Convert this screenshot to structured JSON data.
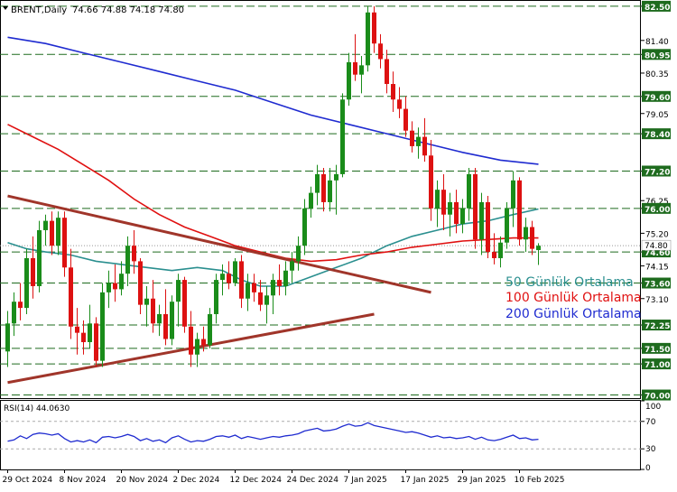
{
  "header": {
    "symbol": "BRENT,Daily",
    "ohlc": "74.66 74.88 74.18 74.80"
  },
  "rsi_header": {
    "label": "RSI(14) 44.0630"
  },
  "colors": {
    "bull": "#1a8c1a",
    "bear": "#dd1111",
    "ma50": "#2a8f8f",
    "ma100": "#e01010",
    "ma200": "#1f2bd0",
    "trendline": "#a0352a",
    "hline": "#1e6b1e",
    "rsi": "#1f2bd0"
  },
  "price_axis": {
    "ticks": [
      "82.50",
      "81.40",
      "80.95",
      "80.35",
      "79.60",
      "79.05",
      "78.40",
      "77.20",
      "76.25",
      "76.00",
      "75.20",
      "74.60",
      "74.15",
      "73.60",
      "73.10",
      "72.25",
      "71.50",
      "71.00",
      "70.00"
    ],
    "boxed": [
      "82.50",
      "80.95",
      "79.60",
      "78.40",
      "77.20",
      "76.00",
      "74.60",
      "73.60",
      "72.25",
      "71.50",
      "71.00",
      "70.00"
    ],
    "current_price": "74.80"
  },
  "x_labels": [
    "29 Oct 2024",
    "8 Nov 2024",
    "20 Nov 2024",
    "2 Dec 2024",
    "12 Dec 2024",
    "24 Dec 2024",
    "7 Jan 2025",
    "17 Jan 2025",
    "29 Jan 2025",
    "10 Feb 2025"
  ],
  "rsi_axis": {
    "ticks": [
      "100",
      "70",
      "30",
      "0"
    ]
  },
  "legend": [
    {
      "label": "50 Günlük Ortalama",
      "color": "#2a8f8f"
    },
    {
      "label": "100 Günlük Ortalama",
      "color": "#e01010"
    },
    {
      "label": "200 Günlük Ortalama",
      "color": "#1f2bd0"
    }
  ],
  "chart_data": {
    "type": "candlestick",
    "title": "BRENT,Daily",
    "ylim": [
      69.9,
      82.7
    ],
    "horizontal_levels": [
      82.5,
      80.95,
      79.6,
      78.4,
      77.2,
      76.0,
      74.6,
      73.6,
      72.25,
      71.5,
      71.0,
      70.0
    ],
    "candles": [
      {
        "o": 71.4,
        "h": 72.7,
        "l": 70.9,
        "c": 72.3
      },
      {
        "o": 72.3,
        "h": 73.3,
        "l": 71.9,
        "c": 73.0
      },
      {
        "o": 73.0,
        "h": 73.6,
        "l": 72.4,
        "c": 72.8
      },
      {
        "o": 72.8,
        "h": 74.7,
        "l": 72.6,
        "c": 74.4
      },
      {
        "o": 74.4,
        "h": 75.1,
        "l": 73.1,
        "c": 73.5
      },
      {
        "o": 73.5,
        "h": 75.6,
        "l": 73.3,
        "c": 75.3
      },
      {
        "o": 75.3,
        "h": 75.8,
        "l": 74.8,
        "c": 75.6
      },
      {
        "o": 75.6,
        "h": 75.9,
        "l": 74.5,
        "c": 74.8
      },
      {
        "o": 74.8,
        "h": 75.9,
        "l": 74.5,
        "c": 75.7
      },
      {
        "o": 75.7,
        "h": 75.9,
        "l": 73.8,
        "c": 74.1
      },
      {
        "o": 74.1,
        "h": 74.7,
        "l": 71.8,
        "c": 72.2
      },
      {
        "o": 72.2,
        "h": 72.8,
        "l": 71.3,
        "c": 72.0
      },
      {
        "o": 72.0,
        "h": 72.4,
        "l": 71.3,
        "c": 71.7
      },
      {
        "o": 71.7,
        "h": 72.9,
        "l": 71.5,
        "c": 72.3
      },
      {
        "o": 72.3,
        "h": 72.5,
        "l": 70.9,
        "c": 71.1
      },
      {
        "o": 71.1,
        "h": 73.6,
        "l": 70.9,
        "c": 73.3
      },
      {
        "o": 73.3,
        "h": 74.0,
        "l": 72.8,
        "c": 73.6
      },
      {
        "o": 73.6,
        "h": 74.2,
        "l": 73.0,
        "c": 73.4
      },
      {
        "o": 73.4,
        "h": 74.3,
        "l": 73.2,
        "c": 73.9
      },
      {
        "o": 73.9,
        "h": 75.1,
        "l": 73.5,
        "c": 74.8
      },
      {
        "o": 74.8,
        "h": 75.3,
        "l": 73.9,
        "c": 74.3
      },
      {
        "o": 74.3,
        "h": 74.4,
        "l": 72.6,
        "c": 72.9
      },
      {
        "o": 72.9,
        "h": 73.5,
        "l": 72.2,
        "c": 73.1
      },
      {
        "o": 73.1,
        "h": 73.7,
        "l": 72.0,
        "c": 72.3
      },
      {
        "o": 72.3,
        "h": 72.9,
        "l": 71.9,
        "c": 72.6
      },
      {
        "o": 72.6,
        "h": 73.4,
        "l": 71.6,
        "c": 71.8
      },
      {
        "o": 71.8,
        "h": 73.2,
        "l": 71.6,
        "c": 73.0
      },
      {
        "o": 73.0,
        "h": 73.9,
        "l": 72.2,
        "c": 73.7
      },
      {
        "o": 73.7,
        "h": 73.8,
        "l": 72.0,
        "c": 72.2
      },
      {
        "o": 72.2,
        "h": 72.7,
        "l": 70.9,
        "c": 71.3
      },
      {
        "o": 71.3,
        "h": 72.0,
        "l": 70.9,
        "c": 71.8
      },
      {
        "o": 71.8,
        "h": 72.2,
        "l": 71.4,
        "c": 71.6
      },
      {
        "o": 71.6,
        "h": 72.8,
        "l": 71.5,
        "c": 72.6
      },
      {
        "o": 72.6,
        "h": 73.9,
        "l": 72.3,
        "c": 73.7
      },
      {
        "o": 73.7,
        "h": 74.2,
        "l": 73.2,
        "c": 73.9
      },
      {
        "o": 73.9,
        "h": 74.3,
        "l": 73.4,
        "c": 73.6
      },
      {
        "o": 73.6,
        "h": 74.4,
        "l": 73.5,
        "c": 74.3
      },
      {
        "o": 74.3,
        "h": 74.5,
        "l": 72.8,
        "c": 73.1
      },
      {
        "o": 73.1,
        "h": 73.9,
        "l": 72.7,
        "c": 73.6
      },
      {
        "o": 73.6,
        "h": 73.9,
        "l": 73.0,
        "c": 73.3
      },
      {
        "o": 73.3,
        "h": 73.7,
        "l": 72.7,
        "c": 72.9
      },
      {
        "o": 72.9,
        "h": 73.5,
        "l": 72.3,
        "c": 73.2
      },
      {
        "o": 73.2,
        "h": 73.9,
        "l": 72.6,
        "c": 73.7
      },
      {
        "o": 73.7,
        "h": 74.2,
        "l": 73.2,
        "c": 73.5
      },
      {
        "o": 73.5,
        "h": 74.3,
        "l": 73.2,
        "c": 74.0
      },
      {
        "o": 74.0,
        "h": 74.6,
        "l": 73.6,
        "c": 74.3
      },
      {
        "o": 74.3,
        "h": 75.1,
        "l": 74.0,
        "c": 74.8
      },
      {
        "o": 74.8,
        "h": 76.3,
        "l": 74.5,
        "c": 76.0
      },
      {
        "o": 76.0,
        "h": 76.7,
        "l": 75.7,
        "c": 76.5
      },
      {
        "o": 76.5,
        "h": 77.4,
        "l": 76.1,
        "c": 77.1
      },
      {
        "o": 77.1,
        "h": 77.3,
        "l": 75.9,
        "c": 76.2
      },
      {
        "o": 76.2,
        "h": 77.3,
        "l": 75.9,
        "c": 76.9
      },
      {
        "o": 76.9,
        "h": 77.4,
        "l": 75.8,
        "c": 77.1
      },
      {
        "o": 77.1,
        "h": 79.7,
        "l": 77.0,
        "c": 79.5
      },
      {
        "o": 79.5,
        "h": 81.0,
        "l": 79.3,
        "c": 80.7
      },
      {
        "o": 80.7,
        "h": 81.6,
        "l": 80.1,
        "c": 80.3
      },
      {
        "o": 80.3,
        "h": 80.9,
        "l": 79.7,
        "c": 80.6
      },
      {
        "o": 80.6,
        "h": 82.5,
        "l": 80.4,
        "c": 82.3
      },
      {
        "o": 82.3,
        "h": 82.5,
        "l": 81.0,
        "c": 81.3
      },
      {
        "o": 81.3,
        "h": 81.6,
        "l": 80.5,
        "c": 80.8
      },
      {
        "o": 80.8,
        "h": 81.1,
        "l": 79.7,
        "c": 80.0
      },
      {
        "o": 80.0,
        "h": 80.4,
        "l": 79.1,
        "c": 79.5
      },
      {
        "o": 79.5,
        "h": 79.9,
        "l": 78.9,
        "c": 79.2
      },
      {
        "o": 79.2,
        "h": 79.6,
        "l": 78.3,
        "c": 78.5
      },
      {
        "o": 78.5,
        "h": 78.8,
        "l": 77.8,
        "c": 78.0
      },
      {
        "o": 78.0,
        "h": 78.6,
        "l": 77.6,
        "c": 78.3
      },
      {
        "o": 78.3,
        "h": 78.9,
        "l": 77.5,
        "c": 77.7
      },
      {
        "o": 77.7,
        "h": 78.2,
        "l": 75.6,
        "c": 76.0
      },
      {
        "o": 76.0,
        "h": 76.9,
        "l": 75.4,
        "c": 76.6
      },
      {
        "o": 76.6,
        "h": 77.1,
        "l": 75.3,
        "c": 75.8
      },
      {
        "o": 75.8,
        "h": 76.5,
        "l": 75.1,
        "c": 76.2
      },
      {
        "o": 76.2,
        "h": 76.6,
        "l": 75.2,
        "c": 75.5
      },
      {
        "o": 75.5,
        "h": 76.3,
        "l": 75.2,
        "c": 76.0
      },
      {
        "o": 76.0,
        "h": 77.3,
        "l": 75.6,
        "c": 77.1
      },
      {
        "o": 77.1,
        "h": 77.3,
        "l": 74.7,
        "c": 75.0
      },
      {
        "o": 75.0,
        "h": 76.5,
        "l": 74.5,
        "c": 76.2
      },
      {
        "o": 76.2,
        "h": 76.4,
        "l": 74.4,
        "c": 74.6
      },
      {
        "o": 74.6,
        "h": 75.2,
        "l": 74.2,
        "c": 74.4
      },
      {
        "o": 74.4,
        "h": 75.1,
        "l": 74.1,
        "c": 74.9
      },
      {
        "o": 74.9,
        "h": 76.2,
        "l": 74.7,
        "c": 76.0
      },
      {
        "o": 76.0,
        "h": 77.2,
        "l": 75.4,
        "c": 76.9
      },
      {
        "o": 76.9,
        "h": 77.0,
        "l": 74.8,
        "c": 75.0
      },
      {
        "o": 75.0,
        "h": 75.7,
        "l": 74.6,
        "c": 75.4
      },
      {
        "o": 75.4,
        "h": 75.6,
        "l": 74.5,
        "c": 74.7
      },
      {
        "o": 74.66,
        "h": 74.88,
        "l": 74.18,
        "c": 74.8
      }
    ],
    "moving_averages": [
      {
        "name": "50 Günlük Ortalama",
        "points": [
          [
            0,
            74.9
          ],
          [
            3,
            74.7
          ],
          [
            6,
            74.6
          ],
          [
            10,
            74.5
          ],
          [
            14,
            74.3
          ],
          [
            18,
            74.2
          ],
          [
            22,
            74.1
          ],
          [
            26,
            74.0
          ],
          [
            30,
            74.1
          ],
          [
            34,
            74.0
          ],
          [
            37,
            73.7
          ],
          [
            40,
            73.5
          ],
          [
            44,
            73.5
          ],
          [
            48,
            73.8
          ],
          [
            52,
            74.1
          ],
          [
            56,
            74.4
          ],
          [
            60,
            74.8
          ],
          [
            64,
            75.1
          ],
          [
            68,
            75.3
          ],
          [
            72,
            75.5
          ],
          [
            76,
            75.6
          ],
          [
            80,
            75.8
          ],
          [
            84,
            75.98
          ]
        ]
      },
      {
        "name": "100 Günlük Ortalama",
        "points": [
          [
            0,
            78.7
          ],
          [
            4,
            78.3
          ],
          [
            8,
            77.9
          ],
          [
            12,
            77.4
          ],
          [
            16,
            76.9
          ],
          [
            20,
            76.3
          ],
          [
            24,
            75.8
          ],
          [
            28,
            75.4
          ],
          [
            32,
            75.1
          ],
          [
            36,
            74.8
          ],
          [
            40,
            74.6
          ],
          [
            44,
            74.4
          ],
          [
            48,
            74.3
          ],
          [
            52,
            74.35
          ],
          [
            56,
            74.5
          ],
          [
            60,
            74.6
          ],
          [
            64,
            74.75
          ],
          [
            68,
            74.85
          ],
          [
            72,
            74.95
          ],
          [
            76,
            75.0
          ],
          [
            80,
            75.05
          ],
          [
            84,
            75.05
          ]
        ]
      },
      {
        "name": "200 Günlük Ortalama",
        "points": [
          [
            0,
            81.5
          ],
          [
            6,
            81.3
          ],
          [
            12,
            81.0
          ],
          [
            18,
            80.7
          ],
          [
            24,
            80.4
          ],
          [
            30,
            80.1
          ],
          [
            36,
            79.8
          ],
          [
            42,
            79.4
          ],
          [
            48,
            79.0
          ],
          [
            54,
            78.7
          ],
          [
            60,
            78.4
          ],
          [
            66,
            78.1
          ],
          [
            72,
            77.8
          ],
          [
            78,
            77.55
          ],
          [
            84,
            77.42
          ]
        ]
      }
    ],
    "trendlines": [
      {
        "from": [
          0,
          76.4
        ],
        "to": [
          67,
          73.3
        ]
      },
      {
        "from": [
          0,
          70.4
        ],
        "to": [
          58,
          72.6
        ]
      }
    ],
    "rsi": {
      "period": 14,
      "ylim": [
        0,
        100
      ],
      "levels": [
        70,
        30
      ],
      "values": [
        41,
        43,
        49,
        45,
        51,
        53,
        52,
        50,
        52,
        45,
        40,
        42,
        40,
        43,
        39,
        47,
        48,
        46,
        48,
        51,
        48,
        42,
        45,
        41,
        43,
        39,
        46,
        49,
        44,
        40,
        42,
        41,
        44,
        48,
        49,
        47,
        50,
        45,
        48,
        46,
        44,
        46,
        48,
        47,
        49,
        50,
        52,
        56,
        58,
        60,
        56,
        57,
        59,
        63,
        66,
        63,
        64,
        68,
        64,
        62,
        60,
        58,
        56,
        54,
        55,
        53,
        50,
        47,
        49,
        46,
        47,
        45,
        46,
        48,
        44,
        47,
        43,
        42,
        44,
        47,
        50,
        45,
        46,
        43,
        44
      ]
    }
  }
}
